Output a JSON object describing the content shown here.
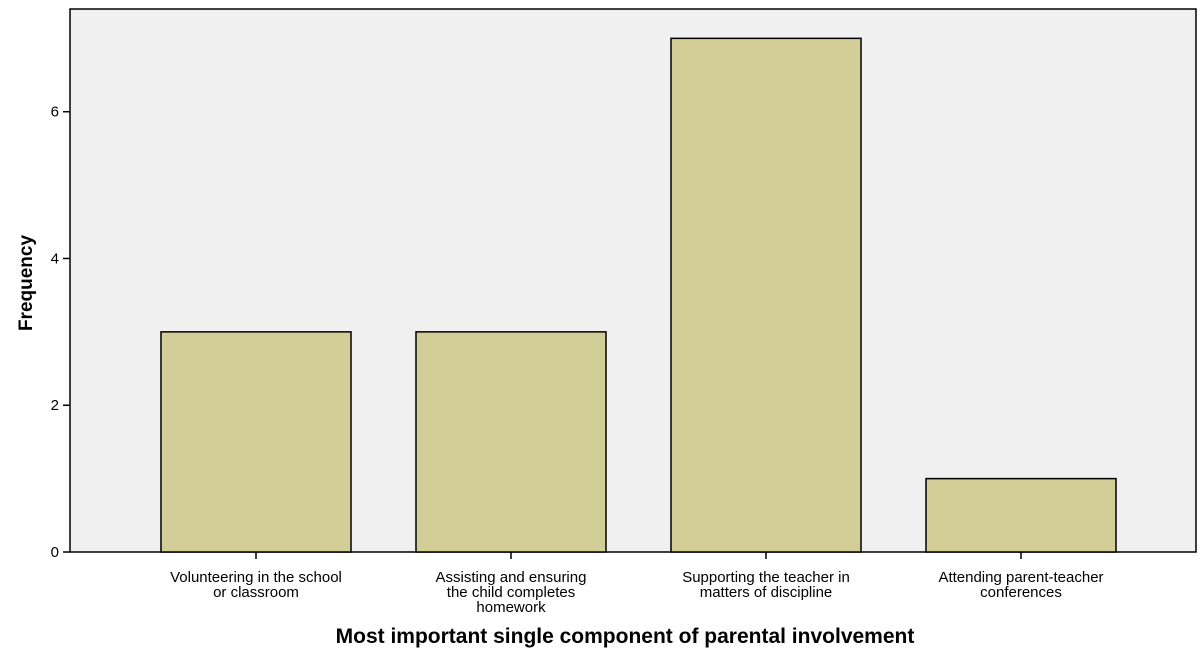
{
  "chart_data": {
    "type": "bar",
    "title": "",
    "xlabel": "Most important single component of parental involvement",
    "ylabel": "Frequency",
    "categories": [
      [
        "Volunteering in the school",
        "or classroom"
      ],
      [
        "Assisting and ensuring",
        "the child completes",
        "homework"
      ],
      [
        "Supporting the teacher in",
        "matters of discipline"
      ],
      [
        "Attending parent-teacher",
        "conferences"
      ]
    ],
    "values": [
      3,
      3,
      7,
      1
    ],
    "ylim": [
      0,
      7.4
    ],
    "yticks": [
      "0",
      "2",
      "4",
      "6"
    ],
    "grid": false,
    "colors": {
      "bar_fill": "#d3ce98",
      "bar_stroke": "#000000",
      "plot_background": "#f0f0f0"
    }
  }
}
